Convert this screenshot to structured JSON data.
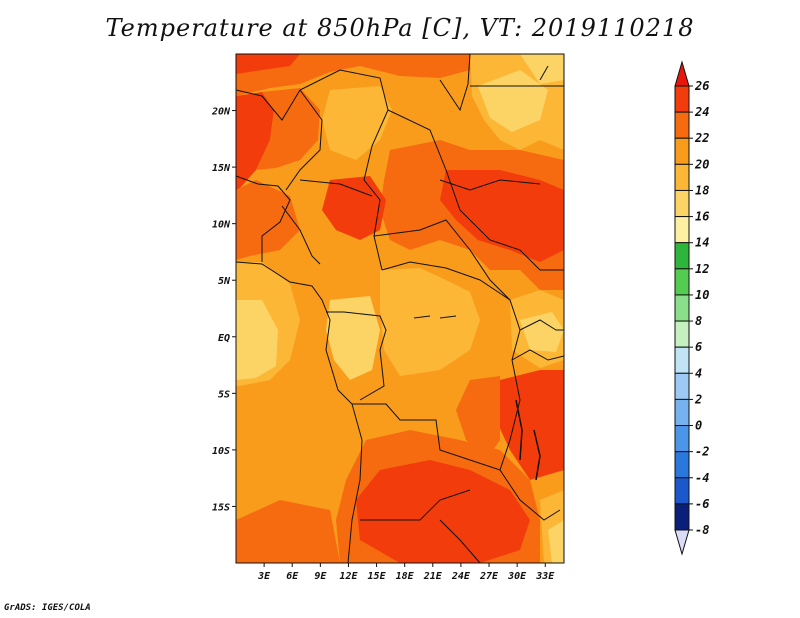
{
  "title": "Temperature at 850hPa [C], VT: 2019110218",
  "credit": "GrADS: IGES/COLA",
  "map": {
    "lon_range": [
      0,
      35
    ],
    "lat_range": [
      -20,
      25
    ],
    "lat_ticks": [
      {
        "value": 20,
        "label": "20N"
      },
      {
        "value": 15,
        "label": "15N"
      },
      {
        "value": 10,
        "label": "10N"
      },
      {
        "value": 5,
        "label": "5N"
      },
      {
        "value": 0,
        "label": "EQ"
      },
      {
        "value": -5,
        "label": "5S"
      },
      {
        "value": -10,
        "label": "10S"
      },
      {
        "value": -15,
        "label": "15S"
      }
    ],
    "lon_ticks": [
      {
        "value": 3,
        "label": "3E"
      },
      {
        "value": 6,
        "label": "6E"
      },
      {
        "value": 9,
        "label": "9E"
      },
      {
        "value": 12,
        "label": "12E"
      },
      {
        "value": 15,
        "label": "15E"
      },
      {
        "value": 18,
        "label": "18E"
      },
      {
        "value": 21,
        "label": "21E"
      },
      {
        "value": 24,
        "label": "24E"
      },
      {
        "value": 27,
        "label": "27E"
      },
      {
        "value": 30,
        "label": "30E"
      },
      {
        "value": 33,
        "label": "33E"
      }
    ]
  },
  "colorbar": {
    "levels": [
      {
        "label": "26",
        "color": "#e8170e"
      },
      {
        "label": "24",
        "color": "#f23c0c"
      },
      {
        "label": "22",
        "color": "#f66b10"
      },
      {
        "label": "20",
        "color": "#f99c1c"
      },
      {
        "label": "18",
        "color": "#fbb735"
      },
      {
        "label": "16",
        "color": "#fcd466"
      },
      {
        "label": "14",
        "color": "#fdf0a2"
      },
      {
        "label": "12",
        "color": "#2eb63c"
      },
      {
        "label": "10",
        "color": "#54cc50"
      },
      {
        "label": "8",
        "color": "#8ae08a"
      },
      {
        "label": "6",
        "color": "#c6f0c0"
      },
      {
        "label": "4",
        "color": "#c0e4f6"
      },
      {
        "label": "2",
        "color": "#9ccaf4"
      },
      {
        "label": "0",
        "color": "#76b2f0"
      },
      {
        "label": "-2",
        "color": "#4c96ea"
      },
      {
        "label": "-4",
        "color": "#2b78dc"
      },
      {
        "label": "-6",
        "color": "#1a58cc"
      },
      {
        "label": "-8",
        "color": "#0d3aa8"
      }
    ],
    "top_arrow_color": "#e8170e",
    "bottom_arrow_color": "#dcdcf6",
    "bottom_dark_color": "#0a1f7a"
  }
}
